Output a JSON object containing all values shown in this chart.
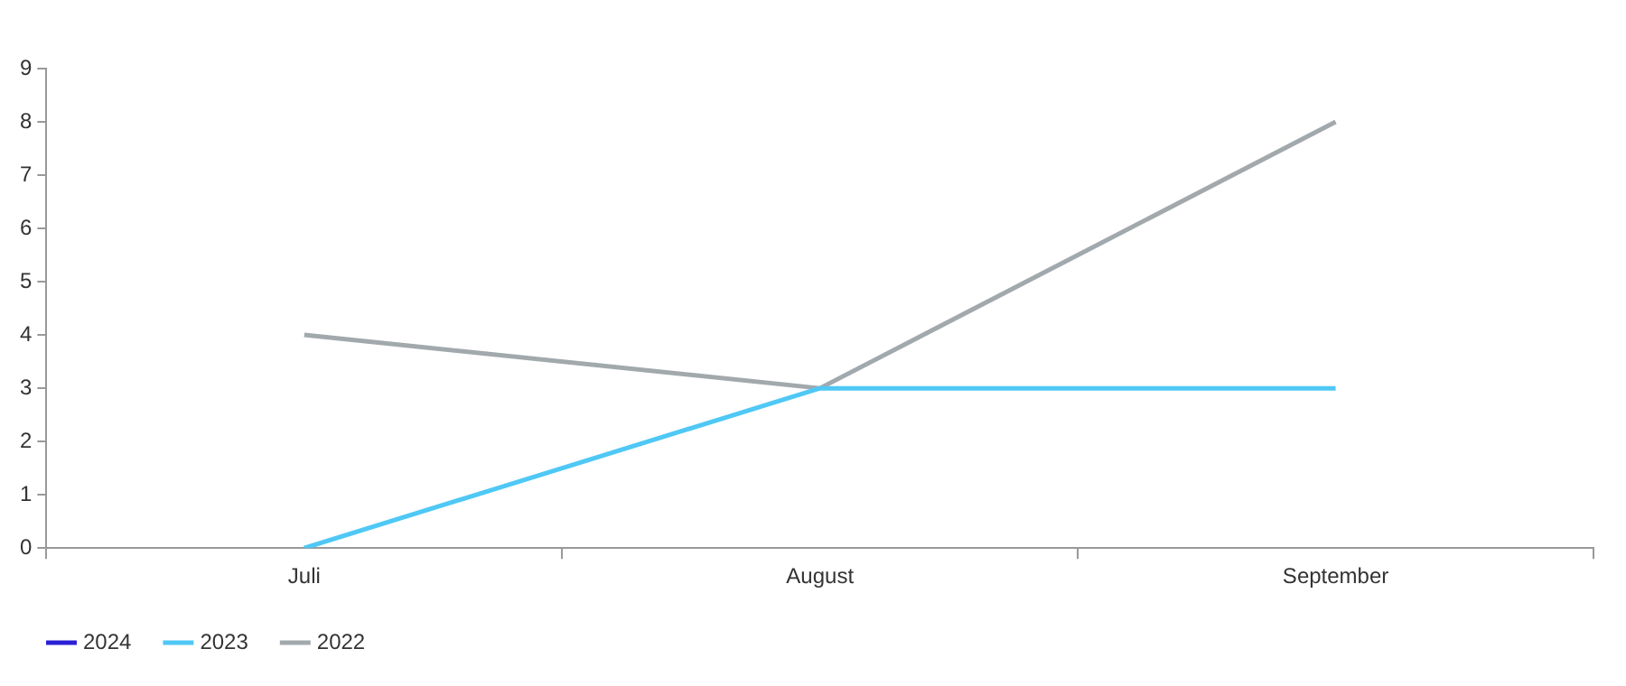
{
  "chart_data": {
    "type": "line",
    "categories": [
      "Juli",
      "August",
      "September"
    ],
    "series": [
      {
        "name": "2024",
        "color": "#2a1fd4",
        "values": [
          null,
          null,
          null
        ]
      },
      {
        "name": "2023",
        "color": "#4fc8f5",
        "values": [
          0,
          3,
          3
        ]
      },
      {
        "name": "2022",
        "color": "#a2a9ad",
        "values": [
          4,
          3,
          8
        ]
      }
    ],
    "ylim": [
      0,
      9
    ],
    "yticks": [
      0,
      1,
      2,
      3,
      4,
      5,
      6,
      7,
      8,
      9
    ],
    "grid": false,
    "legend": "bottom left",
    "marker": "none",
    "line_style": "solid"
  }
}
